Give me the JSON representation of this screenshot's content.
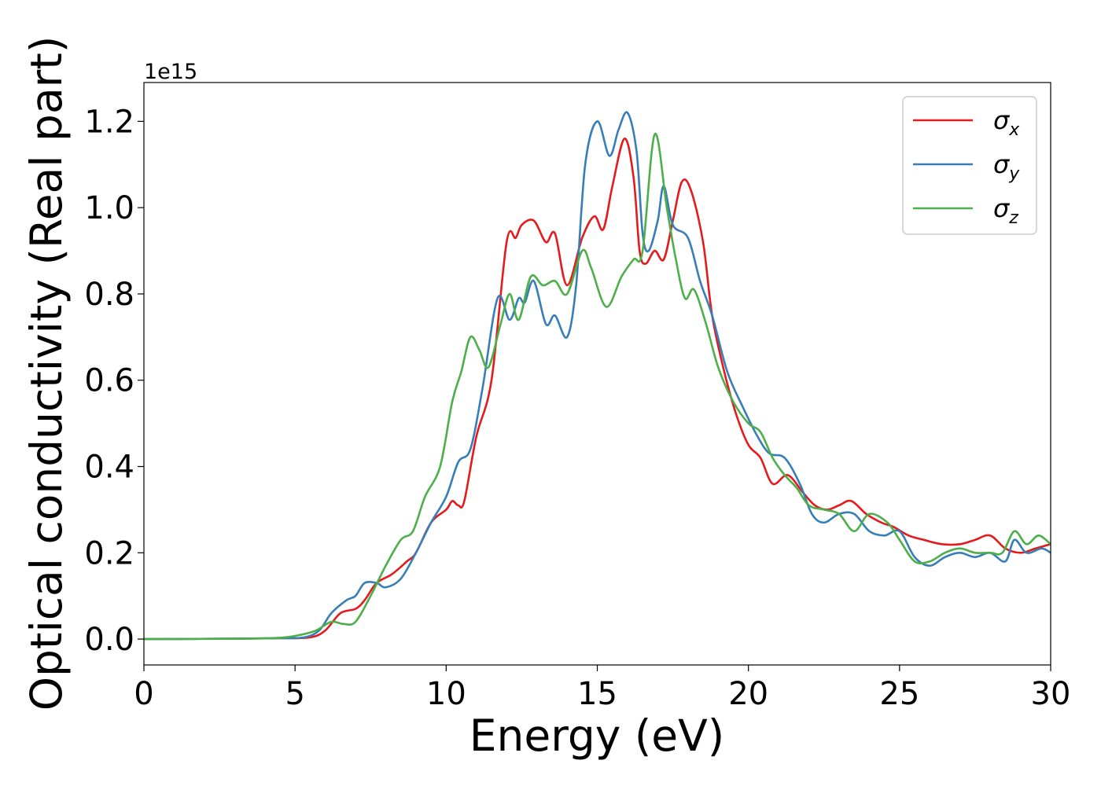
{
  "chart_data": {
    "type": "line",
    "title": "",
    "xlabel": "Energy (eV)",
    "ylabel": "Optical conductivity (Real part)",
    "y_offset_label": "1e15",
    "xlim": [
      0,
      30
    ],
    "ylim": [
      -0.06,
      1.29
    ],
    "x_ticks": [
      0,
      5,
      10,
      15,
      20,
      25,
      30
    ],
    "x_tick_labels": [
      "0",
      "5",
      "10",
      "15",
      "20",
      "25",
      "30"
    ],
    "y_ticks": [
      0.0,
      0.2,
      0.4,
      0.6,
      0.8,
      1.0,
      1.2
    ],
    "y_tick_labels": [
      "0.0",
      "0.2",
      "0.4",
      "0.6",
      "0.8",
      "1.0",
      "1.2"
    ],
    "grid": false,
    "legend_position": "top-right",
    "series": [
      {
        "name": "σ",
        "subscript": "x",
        "color": "#e41a1c",
        "points": [
          [
            0,
            0
          ],
          [
            3,
            0.001
          ],
          [
            4.5,
            0.002
          ],
          [
            5.5,
            0.004
          ],
          [
            6,
            0.02
          ],
          [
            6.5,
            0.06
          ],
          [
            7,
            0.07
          ],
          [
            7.3,
            0.09
          ],
          [
            7.7,
            0.13
          ],
          [
            8.2,
            0.15
          ],
          [
            8.7,
            0.18
          ],
          [
            9,
            0.2
          ],
          [
            9.5,
            0.27
          ],
          [
            10,
            0.3
          ],
          [
            10.2,
            0.32
          ],
          [
            10.4,
            0.31
          ],
          [
            10.6,
            0.32
          ],
          [
            11,
            0.47
          ],
          [
            11.5,
            0.6
          ],
          [
            12,
            0.92
          ],
          [
            12.3,
            0.93
          ],
          [
            12.5,
            0.96
          ],
          [
            12.9,
            0.97
          ],
          [
            13.3,
            0.92
          ],
          [
            13.6,
            0.94
          ],
          [
            14,
            0.82
          ],
          [
            14.5,
            0.93
          ],
          [
            14.9,
            0.98
          ],
          [
            15.2,
            0.95
          ],
          [
            15.5,
            1.05
          ],
          [
            15.9,
            1.16
          ],
          [
            16.2,
            1.07
          ],
          [
            16.4,
            0.9
          ],
          [
            16.6,
            0.87
          ],
          [
            16.9,
            0.9
          ],
          [
            17.2,
            0.88
          ],
          [
            17.5,
            0.97
          ],
          [
            17.8,
            1.06
          ],
          [
            18.1,
            1.04
          ],
          [
            18.5,
            0.92
          ],
          [
            18.8,
            0.75
          ],
          [
            19.2,
            0.62
          ],
          [
            19.6,
            0.52
          ],
          [
            20,
            0.45
          ],
          [
            20.4,
            0.42
          ],
          [
            20.8,
            0.36
          ],
          [
            21.3,
            0.38
          ],
          [
            21.8,
            0.34
          ],
          [
            22.2,
            0.31
          ],
          [
            22.6,
            0.3
          ],
          [
            23,
            0.31
          ],
          [
            23.4,
            0.32
          ],
          [
            23.9,
            0.29
          ],
          [
            24.4,
            0.27
          ],
          [
            24.8,
            0.26
          ],
          [
            25.3,
            0.24
          ],
          [
            25.8,
            0.23
          ],
          [
            26.4,
            0.22
          ],
          [
            27,
            0.22
          ],
          [
            27.5,
            0.23
          ],
          [
            28,
            0.24
          ],
          [
            28.5,
            0.21
          ],
          [
            29,
            0.2
          ],
          [
            29.5,
            0.21
          ],
          [
            30,
            0.22
          ]
        ]
      },
      {
        "name": "σ",
        "subscript": "y",
        "color": "#377eb8",
        "points": [
          [
            0,
            0
          ],
          [
            3,
            0.001
          ],
          [
            4.5,
            0.002
          ],
          [
            5.3,
            0.004
          ],
          [
            5.8,
            0.02
          ],
          [
            6.2,
            0.06
          ],
          [
            6.7,
            0.09
          ],
          [
            7,
            0.1
          ],
          [
            7.3,
            0.13
          ],
          [
            7.7,
            0.13
          ],
          [
            8,
            0.12
          ],
          [
            8.5,
            0.14
          ],
          [
            9,
            0.2
          ],
          [
            9.5,
            0.27
          ],
          [
            10,
            0.33
          ],
          [
            10.4,
            0.41
          ],
          [
            10.8,
            0.44
          ],
          [
            11.2,
            0.58
          ],
          [
            11.7,
            0.79
          ],
          [
            12.1,
            0.74
          ],
          [
            12.4,
            0.79
          ],
          [
            12.6,
            0.78
          ],
          [
            12.9,
            0.83
          ],
          [
            13.3,
            0.73
          ],
          [
            13.6,
            0.75
          ],
          [
            14,
            0.7
          ],
          [
            14.3,
            0.82
          ],
          [
            14.6,
            1.1
          ],
          [
            15,
            1.2
          ],
          [
            15.4,
            1.12
          ],
          [
            15.7,
            1.18
          ],
          [
            16,
            1.22
          ],
          [
            16.3,
            1.13
          ],
          [
            16.5,
            0.94
          ],
          [
            16.7,
            0.9
          ],
          [
            17,
            0.97
          ],
          [
            17.2,
            1.05
          ],
          [
            17.5,
            0.96
          ],
          [
            18,
            0.93
          ],
          [
            18.4,
            0.83
          ],
          [
            18.8,
            0.75
          ],
          [
            19.3,
            0.62
          ],
          [
            19.8,
            0.54
          ],
          [
            20.3,
            0.47
          ],
          [
            20.7,
            0.43
          ],
          [
            21.2,
            0.42
          ],
          [
            21.7,
            0.36
          ],
          [
            22.1,
            0.29
          ],
          [
            22.5,
            0.27
          ],
          [
            23,
            0.29
          ],
          [
            23.5,
            0.29
          ],
          [
            24,
            0.25
          ],
          [
            24.5,
            0.24
          ],
          [
            25,
            0.25
          ],
          [
            25.5,
            0.19
          ],
          [
            26,
            0.17
          ],
          [
            26.5,
            0.19
          ],
          [
            27,
            0.2
          ],
          [
            27.5,
            0.19
          ],
          [
            28,
            0.2
          ],
          [
            28.5,
            0.18
          ],
          [
            28.8,
            0.23
          ],
          [
            29.2,
            0.2
          ],
          [
            29.7,
            0.21
          ],
          [
            30,
            0.2
          ]
        ]
      },
      {
        "name": "σ",
        "subscript": "z",
        "color": "#4daf4a",
        "points": [
          [
            0,
            0
          ],
          [
            3,
            0.001
          ],
          [
            4.5,
            0.003
          ],
          [
            5.2,
            0.01
          ],
          [
            5.7,
            0.02
          ],
          [
            6.2,
            0.04
          ],
          [
            6.6,
            0.035
          ],
          [
            7,
            0.04
          ],
          [
            7.5,
            0.1
          ],
          [
            8,
            0.17
          ],
          [
            8.5,
            0.23
          ],
          [
            8.9,
            0.25
          ],
          [
            9.3,
            0.33
          ],
          [
            9.8,
            0.4
          ],
          [
            10.2,
            0.55
          ],
          [
            10.5,
            0.62
          ],
          [
            10.8,
            0.7
          ],
          [
            11.1,
            0.67
          ],
          [
            11.4,
            0.63
          ],
          [
            11.8,
            0.73
          ],
          [
            12.1,
            0.8
          ],
          [
            12.4,
            0.74
          ],
          [
            12.8,
            0.84
          ],
          [
            13.2,
            0.82
          ],
          [
            13.6,
            0.83
          ],
          [
            14,
            0.8
          ],
          [
            14.5,
            0.9
          ],
          [
            14.8,
            0.86
          ],
          [
            15.3,
            0.77
          ],
          [
            15.8,
            0.84
          ],
          [
            16.2,
            0.88
          ],
          [
            16.5,
            0.9
          ],
          [
            16.9,
            1.17
          ],
          [
            17.3,
            1.0
          ],
          [
            17.6,
            0.88
          ],
          [
            17.9,
            0.79
          ],
          [
            18.2,
            0.81
          ],
          [
            18.6,
            0.73
          ],
          [
            19,
            0.63
          ],
          [
            19.5,
            0.55
          ],
          [
            20,
            0.5
          ],
          [
            20.4,
            0.48
          ],
          [
            20.8,
            0.42
          ],
          [
            21.2,
            0.38
          ],
          [
            21.6,
            0.35
          ],
          [
            22,
            0.31
          ],
          [
            22.5,
            0.3
          ],
          [
            23,
            0.29
          ],
          [
            23.5,
            0.25
          ],
          [
            24,
            0.29
          ],
          [
            24.6,
            0.27
          ],
          [
            25,
            0.23
          ],
          [
            25.5,
            0.18
          ],
          [
            26,
            0.18
          ],
          [
            26.5,
            0.2
          ],
          [
            27,
            0.21
          ],
          [
            27.5,
            0.2
          ],
          [
            28,
            0.2
          ],
          [
            28.4,
            0.2
          ],
          [
            28.8,
            0.25
          ],
          [
            29.2,
            0.22
          ],
          [
            29.6,
            0.24
          ],
          [
            30,
            0.22
          ]
        ]
      }
    ]
  }
}
